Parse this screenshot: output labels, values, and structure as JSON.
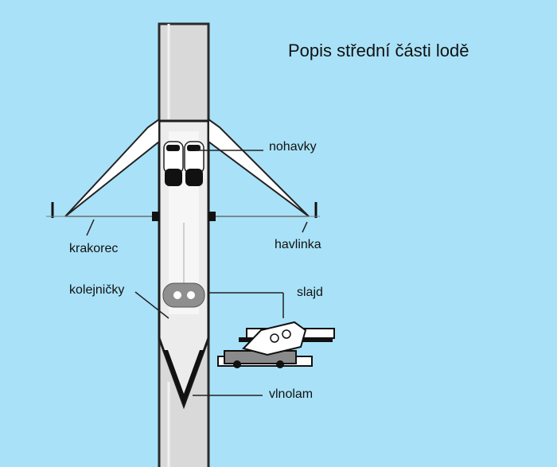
{
  "title": "Popis střední části lodě",
  "labels": {
    "nohavky": "nohavky",
    "krakorec": "krakorec",
    "havlinka": "havlinka",
    "kolejnicky": "kolejničky",
    "slajd": "slajd",
    "vlnolam": "vlnolam"
  },
  "colors": {
    "background": "#a9e2f8",
    "hull": "#d9d9d9",
    "hull_outline": "#2a2a2a",
    "deck_white": "#f2f2f2",
    "seat": "#8f8f8f",
    "black": "#111111"
  }
}
